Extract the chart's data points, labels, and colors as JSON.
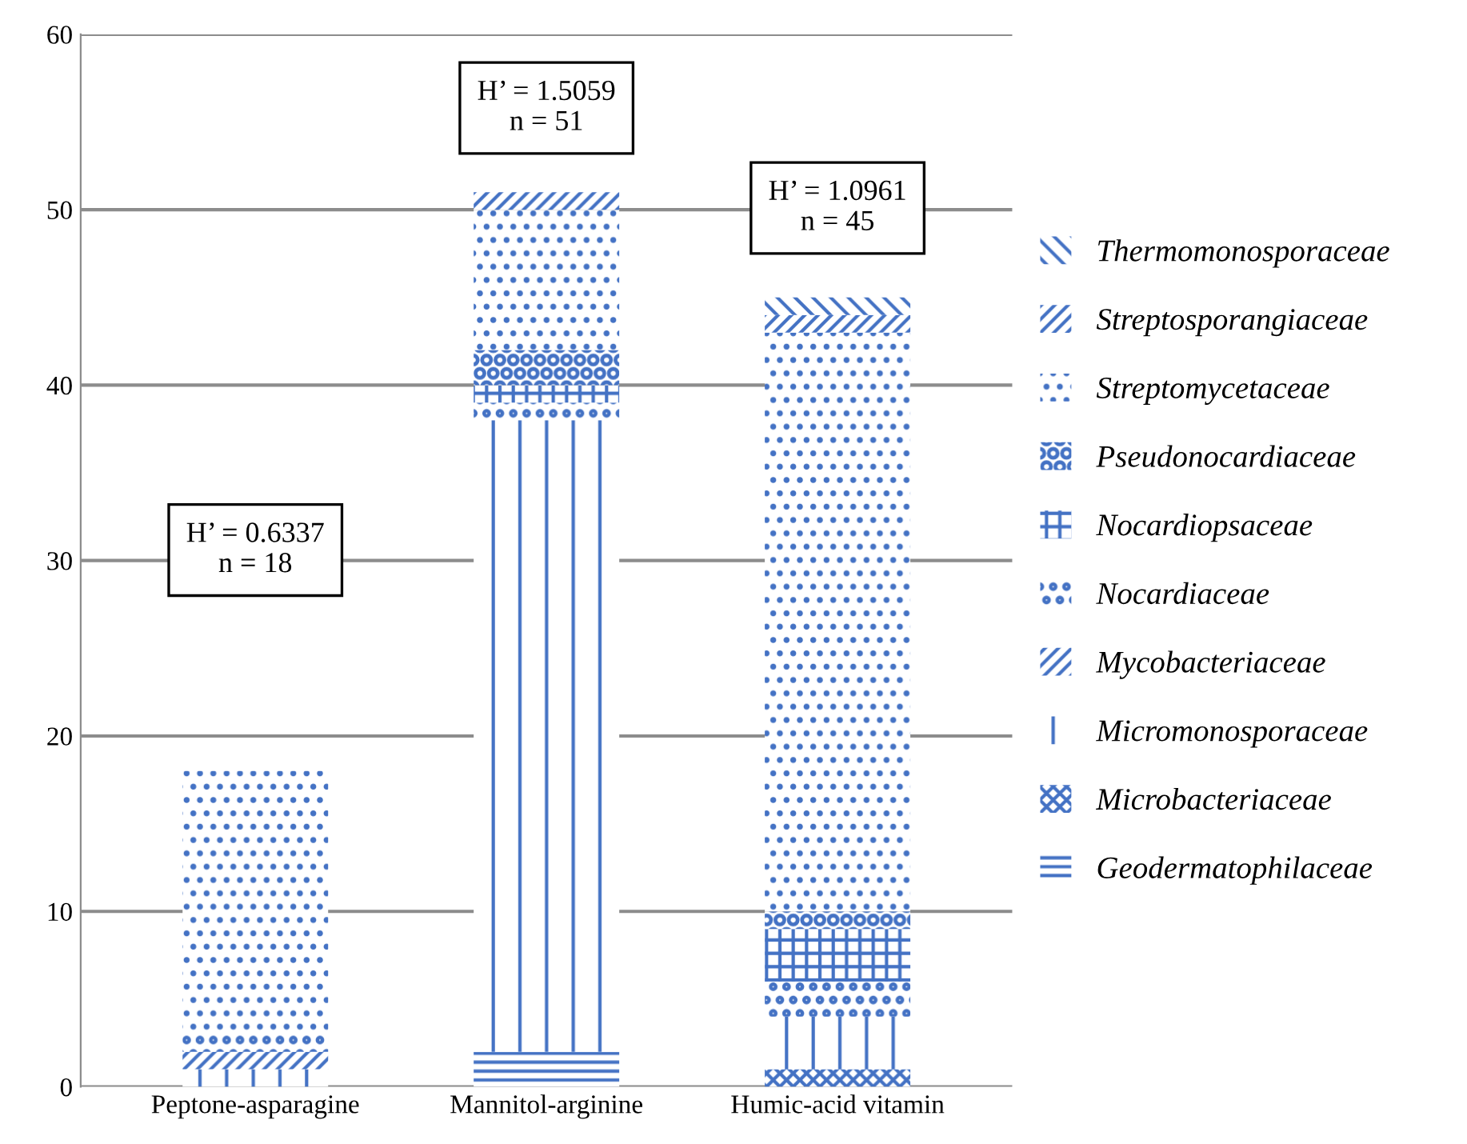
{
  "chart_data": {
    "type": "bar",
    "stacked": true,
    "categories": [
      "Peptone-asparagine",
      "Mannitol-arginine",
      "Humic-acid vitamin"
    ],
    "series": [
      {
        "name": "Geodermatophilaceae",
        "color": "#4472c4",
        "values": [
          0,
          2,
          0
        ]
      },
      {
        "name": "Microbacteriaceae",
        "color": "#4472c4",
        "values": [
          0,
          0,
          1
        ]
      },
      {
        "name": "Micromonosporaceae",
        "color": "#4472c4",
        "values": [
          1,
          36,
          3
        ]
      },
      {
        "name": "Mycobacteriaceae",
        "color": "#4472c4",
        "values": [
          1,
          0,
          0
        ]
      },
      {
        "name": "Nocardiaceae",
        "color": "#4472c4",
        "values": [
          1,
          1,
          2
        ]
      },
      {
        "name": "Nocardiopsaceae",
        "color": "#4472c4",
        "values": [
          0,
          1,
          3
        ]
      },
      {
        "name": "Pseudonocardiaceae",
        "color": "#4472c4",
        "values": [
          0,
          2,
          1
        ]
      },
      {
        "name": "Streptomycetaceae",
        "color": "#4472c4",
        "values": [
          15,
          8,
          33
        ]
      },
      {
        "name": "Streptosporangiaceae",
        "color": "#4472c4",
        "values": [
          0,
          1,
          1
        ]
      },
      {
        "name": "Thermomonosporaceae",
        "color": "#4472c4",
        "values": [
          0,
          0,
          1
        ]
      }
    ],
    "ylim": [
      0,
      60
    ],
    "yticks": [
      0,
      10,
      20,
      30,
      40,
      50,
      60
    ],
    "grid": "y",
    "legend": "right",
    "annotations": [
      "H’ = 0.6337\nn = 18",
      "H’ = 1.5059\nn = 51",
      "H’ = 1.0961\nn = 45"
    ]
  }
}
